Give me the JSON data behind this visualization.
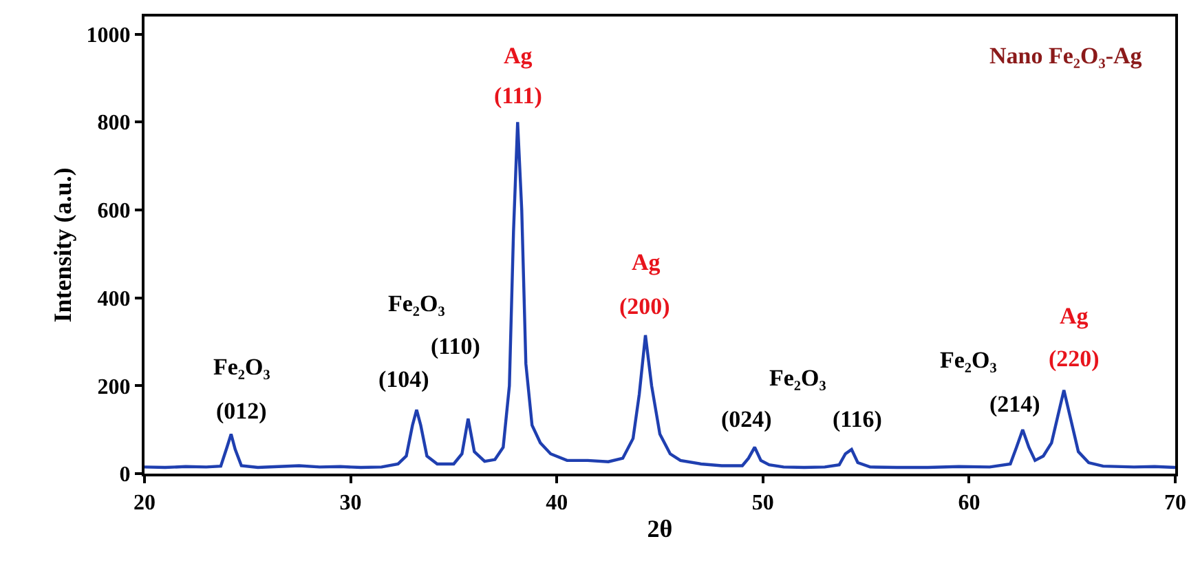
{
  "chart_data": {
    "type": "line",
    "title": "Nano Fe₂O₃-Ag",
    "xlabel": "2θ",
    "ylabel": "Intensity (a.u.)",
    "xlim": [
      20,
      70
    ],
    "xticks": [
      20,
      30,
      40,
      50,
      60,
      70
    ],
    "ylim": [
      0,
      1040
    ],
    "yticks": [
      0,
      200,
      400,
      600,
      800,
      1000
    ],
    "marker": "none",
    "line_style": "solid",
    "series": [
      {
        "color": "#1f3fb0",
        "x": [
          20,
          21,
          22,
          23,
          23.7,
          24.0,
          24.2,
          24.4,
          24.7,
          25.5,
          26.5,
          27.5,
          28.5,
          29.5,
          30.5,
          31.5,
          32.3,
          32.7,
          33.0,
          33.2,
          33.4,
          33.7,
          34.2,
          35.0,
          35.4,
          35.7,
          36.0,
          36.5,
          37.0,
          37.4,
          37.7,
          37.9,
          38.1,
          38.3,
          38.5,
          38.8,
          39.2,
          39.7,
          40.5,
          41.5,
          42.5,
          43.2,
          43.7,
          44.0,
          44.3,
          44.6,
          45.0,
          45.5,
          46.0,
          47,
          48,
          49,
          49.3,
          49.6,
          49.9,
          50.3,
          51,
          52,
          53,
          53.7,
          54.0,
          54.3,
          54.6,
          55.2,
          56.5,
          58,
          59.5,
          61,
          62.0,
          62.3,
          62.6,
          62.9,
          63.2,
          63.6,
          64.0,
          64.3,
          64.6,
          64.9,
          65.3,
          65.8,
          66.5,
          68,
          69,
          70
        ],
        "values": [
          15,
          14,
          16,
          15,
          17,
          60,
          90,
          55,
          18,
          14,
          16,
          18,
          15,
          16,
          14,
          15,
          22,
          40,
          110,
          145,
          110,
          40,
          22,
          22,
          45,
          125,
          50,
          28,
          32,
          60,
          200,
          550,
          800,
          600,
          250,
          110,
          70,
          45,
          30,
          30,
          27,
          35,
          80,
          180,
          315,
          200,
          90,
          45,
          30,
          22,
          18,
          18,
          35,
          60,
          30,
          20,
          15,
          14,
          15,
          20,
          45,
          55,
          25,
          15,
          14,
          14,
          16,
          15,
          22,
          60,
          100,
          60,
          30,
          40,
          70,
          130,
          190,
          130,
          50,
          25,
          17,
          15,
          16,
          14
        ]
      }
    ],
    "annotations": [
      {
        "text": "Fe₂O₃",
        "x": 24.2,
        "y": 90
      },
      {
        "text": "(012)",
        "x": 24.2,
        "y": 90
      },
      "Fe₂O₃",
      {
        "text": "(104)",
        "x": 33.2,
        "y": 145
      },
      {
        "text": "(110)",
        "x": 35.7,
        "y": 125
      },
      {
        "text": "Ag",
        "x": 38.1,
        "y": 800
      },
      {
        "text": "(111)",
        "x": 38.1,
        "y": 800
      },
      {
        "text": "Ag",
        "x": 44.3,
        "y": 315
      },
      {
        "text": "(200)",
        "x": 44.3,
        "y": 315
      },
      {
        "text": "Fe₂O₃",
        "x": 49.6,
        "y": 60
      },
      {
        "text": "(024)",
        "x": 49.6,
        "y": 60
      },
      {
        "text": "(116)",
        "x": 54.3,
        "y": 55
      },
      {
        "text": "Fe₂O₃",
        "x": 62.6,
        "y": 100
      },
      {
        "text": "(214)",
        "x": 62.6,
        "y": 100
      },
      {
        "text": "Ag",
        "x": 64.6,
        "y": 190
      },
      {
        "text": "(220)",
        "x": 64.6,
        "y": 190
      }
    ]
  }
}
